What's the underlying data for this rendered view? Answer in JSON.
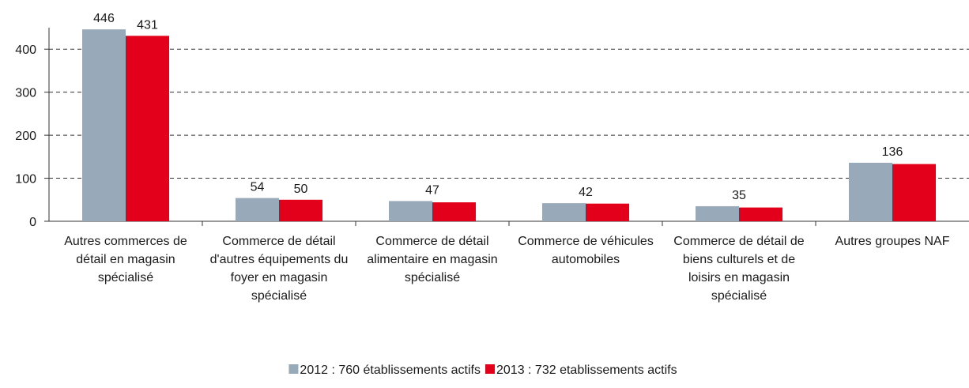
{
  "chart_data": {
    "type": "bar",
    "categories": [
      "Autres commerces de détail en magasin spécialisé",
      "Commerce de détail d'autres équipements du foyer en magasin spécialisé",
      "Commerce de détail alimentaire en magasin spécialisé",
      "Commerce de véhicules automobiles",
      "Commerce de détail de biens culturels et de loisirs en magasin spécialisé",
      "Autres groupes NAF"
    ],
    "series": [
      {
        "name": "2012 : 760 établissements actifs",
        "color": "#98aab9",
        "values": [
          446,
          54,
          47,
          42,
          35,
          136
        ],
        "value_labels": [
          "446",
          "54",
          "47",
          "42",
          "35",
          "136"
        ]
      },
      {
        "name": "2013 :  732 etablissements actifs",
        "color": "#e2001a",
        "values": [
          431,
          50,
          44,
          41,
          32,
          133
        ],
        "value_labels": [
          "431",
          "50",
          null,
          null,
          null,
          null
        ]
      }
    ],
    "ylim": [
      0,
      450
    ],
    "yticks": [
      0,
      100,
      200,
      300,
      400
    ],
    "grid": true,
    "legend": "bottom"
  }
}
